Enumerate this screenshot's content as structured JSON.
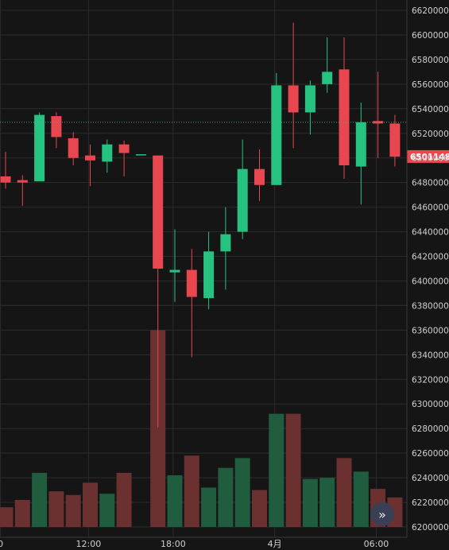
{
  "chart_data": {
    "type": "candlestick",
    "y_ticks": [
      6200000,
      6220000,
      6240000,
      6260000,
      6280000,
      6300000,
      6320000,
      6340000,
      6360000,
      6380000,
      6400000,
      6420000,
      6440000,
      6460000,
      6480000,
      6500000,
      6520000,
      6540000,
      6560000,
      6580000,
      6600000,
      6620000
    ],
    "x_ticks": [
      {
        "label": "0",
        "index": -0.3
      },
      {
        "label": "12:00",
        "index": 4.9
      },
      {
        "label": "18:00",
        "index": 9.9
      },
      {
        "label": "4月",
        "index": 15.9
      },
      {
        "label": "06:00",
        "index": 21.9
      }
    ],
    "current_price": 6529000,
    "last_price_label": "6501148",
    "last_price_value": 6501148,
    "colors": {
      "up": "#26c281",
      "down": "#e8474f",
      "volume_up": "#205c3e",
      "volume_down": "#6b3030",
      "grid": "#2c2c2c",
      "background": "#151515",
      "price_line": "#3fae7f",
      "tag": "#e8474f"
    },
    "candles": [
      {
        "o": 6485000,
        "h": 6505000,
        "l": 6475000,
        "c": 6480000,
        "v": 6216000
      },
      {
        "o": 6482000,
        "h": 6486000,
        "l": 6461000,
        "c": 6480000,
        "v": 6222000
      },
      {
        "o": 6481000,
        "h": 6537000,
        "l": 6481000,
        "c": 6535000,
        "v": 6244000
      },
      {
        "o": 6534000,
        "h": 6537000,
        "l": 6508000,
        "c": 6517000,
        "v": 6229000
      },
      {
        "o": 6516000,
        "h": 6521000,
        "l": 6494000,
        "c": 6500000,
        "v": 6226000
      },
      {
        "o": 6502000,
        "h": 6511000,
        "l": 6477000,
        "c": 6498000,
        "v": 6236000
      },
      {
        "o": 6497000,
        "h": 6515000,
        "l": 6488000,
        "c": 6511000,
        "v": 6227000
      },
      {
        "o": 6511000,
        "h": 6514000,
        "l": 6485000,
        "c": 6504000,
        "v": 6244000
      },
      {
        "o": 6503000,
        "h": 6503000,
        "l": 6503000,
        "c": 6503000,
        "v": 6200000
      },
      {
        "o": 6502000,
        "h": 6502000,
        "l": 6281000,
        "c": 6410000,
        "v": 6360000
      },
      {
        "o": 6407000,
        "h": 6442000,
        "l": 6383000,
        "c": 6409000,
        "v": 6242000
      },
      {
        "o": 6409000,
        "h": 6426000,
        "l": 6338000,
        "c": 6387000,
        "v": 6258000
      },
      {
        "o": 6386000,
        "h": 6440000,
        "l": 6377000,
        "c": 6424000,
        "v": 6232000
      },
      {
        "o": 6424000,
        "h": 6460000,
        "l": 6393000,
        "c": 6438000,
        "v": 6248000
      },
      {
        "o": 6440000,
        "h": 6515000,
        "l": 6434000,
        "c": 6491000,
        "v": 6256000
      },
      {
        "o": 6491000,
        "h": 6507000,
        "l": 6465000,
        "c": 6478000,
        "v": 6230000
      },
      {
        "o": 6478000,
        "h": 6569000,
        "l": 6478000,
        "c": 6559000,
        "v": 6292000
      },
      {
        "o": 6559000,
        "h": 6610000,
        "l": 6508000,
        "c": 6537000,
        "v": 6292000
      },
      {
        "o": 6537000,
        "h": 6563000,
        "l": 6519000,
        "c": 6559000,
        "v": 6239000
      },
      {
        "o": 6560000,
        "h": 6598000,
        "l": 6553000,
        "c": 6570000,
        "v": 6240000
      },
      {
        "o": 6572000,
        "h": 6598000,
        "l": 6483000,
        "c": 6494000,
        "v": 6256000
      },
      {
        "o": 6493000,
        "h": 6545000,
        "l": 6462000,
        "c": 6529000,
        "v": 6245000
      },
      {
        "o": 6530000,
        "h": 6570000,
        "l": 6500000,
        "c": 6528000,
        "v": 6231000
      },
      {
        "o": 6528000,
        "h": 6535000,
        "l": 6493000,
        "c": 6501000,
        "v": 6224000
      }
    ]
  },
  "controls": {
    "scroll_icon": "double-chevron-right-icon",
    "scroll_glyph": "»"
  }
}
